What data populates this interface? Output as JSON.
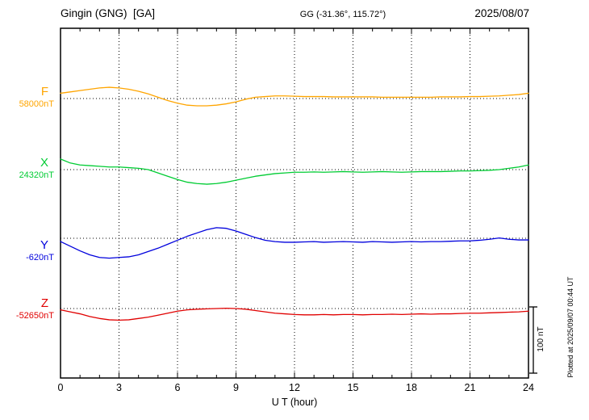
{
  "header": {
    "station": "Gingin (GNG)  [GA]",
    "coords": "GG (-31.36°, 115.72°)",
    "date": "2025/08/07"
  },
  "side": {
    "scale_label": "100 nT",
    "plotted_at": "Plotted at 2025/09/07 00:44 UT"
  },
  "chart_data": {
    "type": "line",
    "title": "Gingin (GNG) [GA] magnetogram 2025/08/07",
    "xlabel": "U T (hour)",
    "xlim": [
      0,
      24
    ],
    "xticks": [
      0,
      3,
      6,
      9,
      12,
      15,
      18,
      21,
      24
    ],
    "x_step_hours": 0.5,
    "scale_bar_nT": 100,
    "grid": "dotted vertical every 3h, dotted horizontal baseline per trace",
    "series": [
      {
        "name": "F",
        "value_label": "58000nT",
        "baseline_nT": 58000,
        "color": "#FFA500",
        "offsets_nT": [
          8,
          10,
          12,
          14,
          16,
          17,
          16,
          14,
          11,
          7,
          2,
          -3,
          -7,
          -10,
          -11,
          -11,
          -10,
          -8,
          -5,
          -1,
          2,
          3,
          4,
          4,
          3.5,
          3,
          3,
          3,
          2.5,
          2.5,
          2.5,
          2.5,
          2.5,
          2,
          2,
          2,
          2,
          2,
          2,
          2.5,
          2.5,
          2.5,
          3,
          3,
          3.5,
          4,
          5,
          6,
          8
        ]
      },
      {
        "name": "X",
        "value_label": "24320nT",
        "baseline_nT": 24320,
        "color": "#00CC33",
        "offsets_nT": [
          16,
          10,
          7,
          6,
          5,
          4,
          4,
          3,
          2,
          0,
          -5,
          -10,
          -15,
          -19,
          -21,
          -22,
          -21,
          -19,
          -16,
          -13,
          -10,
          -8,
          -6,
          -5,
          -4,
          -4,
          -3.5,
          -4,
          -3.5,
          -3,
          -3.5,
          -4,
          -3.5,
          -3,
          -3.5,
          -4,
          -3.5,
          -3,
          -3,
          -3,
          -2.5,
          -2,
          -2,
          -1.5,
          -1,
          0,
          2,
          4,
          7
        ]
      },
      {
        "name": "Y",
        "value_label": "-620nT",
        "baseline_nT": -620,
        "color": "#0000DD",
        "offsets_nT": [
          -5,
          -12,
          -19,
          -25,
          -29,
          -30,
          -29,
          -28,
          -25,
          -20,
          -15,
          -9,
          -3,
          3,
          8,
          13,
          16,
          15,
          11,
          6,
          1,
          -3,
          -5,
          -6,
          -6,
          -5.5,
          -5,
          -6,
          -5.5,
          -5,
          -5.5,
          -6,
          -5,
          -5.5,
          -6,
          -5.5,
          -5,
          -5.5,
          -5,
          -5,
          -4.5,
          -4,
          -4,
          -3,
          -1.5,
          0.5,
          -1.5,
          -2.5,
          -2.5
        ]
      },
      {
        "name": "Z",
        "value_label": "-52650nT",
        "baseline_nT": -52650,
        "color": "#E00000",
        "offsets_nT": [
          -2,
          -5,
          -8,
          -12,
          -15,
          -17,
          -17.5,
          -17,
          -15,
          -13,
          -10,
          -7,
          -4,
          -2,
          -1,
          -0.5,
          0,
          0.5,
          0,
          -1,
          -3,
          -5,
          -7,
          -8,
          -9,
          -9.5,
          -9.5,
          -9,
          -9.5,
          -9,
          -9,
          -9.5,
          -9,
          -9,
          -8.5,
          -9,
          -8.5,
          -8,
          -8.5,
          -8,
          -8,
          -7.5,
          -7,
          -7,
          -6.5,
          -6,
          -5.5,
          -5,
          -4
        ]
      }
    ]
  }
}
